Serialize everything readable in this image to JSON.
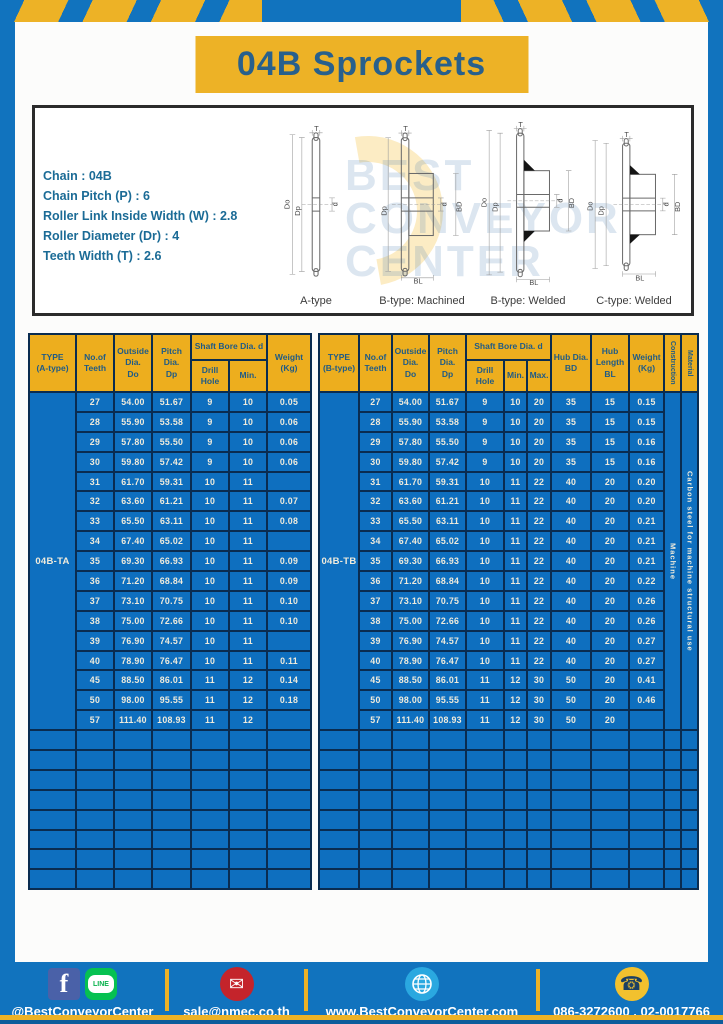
{
  "title": "04B Sprockets",
  "specs": [
    "Chain : 04B",
    "Chain Pitch (P) : 6",
    "Roller Link Inside Width (W) : 2.8",
    "Roller Diameter (Dr) : 4",
    "Teeth Width (T) : 2.6"
  ],
  "diagram": {
    "captions": [
      "A-type",
      "B-type: Machined",
      "B-type: Welded",
      "C-type: Welded"
    ],
    "dims": {
      "t": "T",
      "do": "Do",
      "dp": "Dp",
      "d": "d",
      "bd": "BD",
      "bl": "BL"
    },
    "watermark_lines": [
      "BEST",
      "CONVEYOR",
      "CENTER"
    ]
  },
  "tables": {
    "left": {
      "headers": {
        "type": "TYPE\n(A-type)",
        "teeth": "No.of\nTeeth",
        "outside": "Outside\nDia.\nDo",
        "pitch": "Pitch Dia.\nDp",
        "bore_group": "Shaft Bore Dia. d",
        "drill": "Drill Hole",
        "min": "Min.",
        "weight": "Weight\n(Kg)"
      },
      "type_value": "04B-TA",
      "rows": [
        [
          "27",
          "54.00",
          "51.67",
          "9",
          "10",
          "0.05"
        ],
        [
          "28",
          "55.90",
          "53.58",
          "9",
          "10",
          "0.06"
        ],
        [
          "29",
          "57.80",
          "55.50",
          "9",
          "10",
          "0.06"
        ],
        [
          "30",
          "59.80",
          "57.42",
          "9",
          "10",
          "0.06"
        ],
        [
          "31",
          "61.70",
          "59.31",
          "10",
          "11",
          ""
        ],
        [
          "32",
          "63.60",
          "61.21",
          "10",
          "11",
          "0.07"
        ],
        [
          "33",
          "65.50",
          "63.11",
          "10",
          "11",
          "0.08"
        ],
        [
          "34",
          "67.40",
          "65.02",
          "10",
          "11",
          ""
        ],
        [
          "35",
          "69.30",
          "66.93",
          "10",
          "11",
          "0.09"
        ],
        [
          "36",
          "71.20",
          "68.84",
          "10",
          "11",
          "0.09"
        ],
        [
          "37",
          "73.10",
          "70.75",
          "10",
          "11",
          "0.10"
        ],
        [
          "38",
          "75.00",
          "72.66",
          "10",
          "11",
          "0.10"
        ],
        [
          "39",
          "76.90",
          "74.57",
          "10",
          "11",
          ""
        ],
        [
          "40",
          "78.90",
          "76.47",
          "10",
          "11",
          "0.11"
        ],
        [
          "45",
          "88.50",
          "86.01",
          "11",
          "12",
          "0.14"
        ],
        [
          "50",
          "98.00",
          "95.55",
          "11",
          "12",
          "0.18"
        ],
        [
          "57",
          "111.40",
          "108.93",
          "11",
          "12",
          ""
        ]
      ],
      "empty_row_count": 8
    },
    "right": {
      "headers": {
        "type": "TYPE\n(B-type)",
        "teeth": "No.of\nTeeth",
        "outside": "Outside\nDia.\nDo",
        "pitch": "Pitch Dia.\nDp",
        "bore_group": "Shaft Bore Dia. d",
        "drill": "Drill Hole",
        "min": "Min.",
        "max": "Max.",
        "hub_dia": "Hub Dia.\nBD",
        "hub_len": "Hub\nLength\nBL",
        "weight": "Weight\n(Kg)",
        "construction": "Construction",
        "material": "Material"
      },
      "type_value": "04B-TB",
      "construction_value": "Machine",
      "material_value": "Carbon steel for machine structural use",
      "rows": [
        [
          "27",
          "54.00",
          "51.67",
          "9",
          "10",
          "20",
          "35",
          "15",
          "0.15"
        ],
        [
          "28",
          "55.90",
          "53.58",
          "9",
          "10",
          "20",
          "35",
          "15",
          "0.15"
        ],
        [
          "29",
          "57.80",
          "55.50",
          "9",
          "10",
          "20",
          "35",
          "15",
          "0.16"
        ],
        [
          "30",
          "59.80",
          "57.42",
          "9",
          "10",
          "20",
          "35",
          "15",
          "0.16"
        ],
        [
          "31",
          "61.70",
          "59.31",
          "10",
          "11",
          "22",
          "40",
          "20",
          "0.20"
        ],
        [
          "32",
          "63.60",
          "61.21",
          "10",
          "11",
          "22",
          "40",
          "20",
          "0.20"
        ],
        [
          "33",
          "65.50",
          "63.11",
          "10",
          "11",
          "22",
          "40",
          "20",
          "0.21"
        ],
        [
          "34",
          "67.40",
          "65.02",
          "10",
          "11",
          "22",
          "40",
          "20",
          "0.21"
        ],
        [
          "35",
          "69.30",
          "66.93",
          "10",
          "11",
          "22",
          "40",
          "20",
          "0.21"
        ],
        [
          "36",
          "71.20",
          "68.84",
          "10",
          "11",
          "22",
          "40",
          "20",
          "0.22"
        ],
        [
          "37",
          "73.10",
          "70.75",
          "10",
          "11",
          "22",
          "40",
          "20",
          "0.26"
        ],
        [
          "38",
          "75.00",
          "72.66",
          "10",
          "11",
          "22",
          "40",
          "20",
          "0.26"
        ],
        [
          "39",
          "76.90",
          "74.57",
          "10",
          "11",
          "22",
          "40",
          "20",
          "0.27"
        ],
        [
          "40",
          "78.90",
          "76.47",
          "10",
          "11",
          "22",
          "40",
          "20",
          "0.27"
        ],
        [
          "45",
          "88.50",
          "86.01",
          "11",
          "12",
          "30",
          "50",
          "20",
          "0.41"
        ],
        [
          "50",
          "98.00",
          "95.55",
          "11",
          "12",
          "30",
          "50",
          "20",
          "0.46"
        ],
        [
          "57",
          "111.40",
          "108.93",
          "11",
          "12",
          "30",
          "50",
          "20",
          ""
        ]
      ],
      "empty_row_count": 8
    }
  },
  "footer": {
    "facebook_label": "f",
    "line_label": "LINE",
    "social": "@BestConveyorCenter",
    "email": "sale@nmec.co.th",
    "website": "www.BestConveyorCenter.com",
    "phone": "086-3272600 , 02-0017766",
    "icons": [
      "facebook-icon",
      "line-icon",
      "mail-icon",
      "globe-icon",
      "phone-icon"
    ]
  },
  "colors": {
    "frame_blue": "#1173BE",
    "cell_blue": "#0E6FBF",
    "yellow": "#EDB226",
    "header_text": "#1F5B86",
    "grid": "#0A2C50",
    "spec_text": "#1B6B96"
  }
}
